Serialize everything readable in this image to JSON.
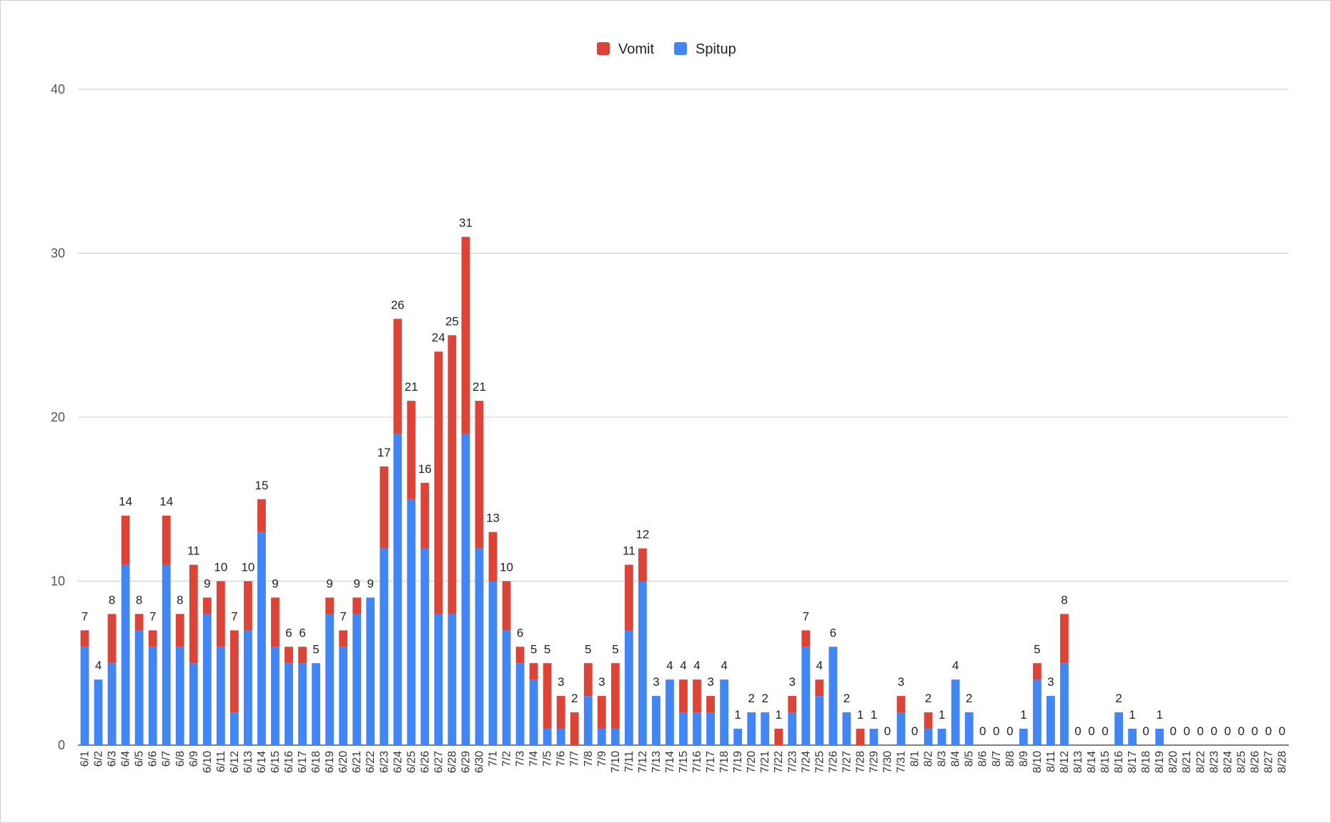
{
  "chart_data": {
    "type": "bar",
    "stacked": true,
    "title": "",
    "xlabel": "",
    "ylabel": "",
    "ylim": [
      0,
      40
    ],
    "yticks": [
      0,
      10,
      20,
      30,
      40
    ],
    "grid": true,
    "legend_position": "top",
    "categories": [
      "6/1",
      "6/2",
      "6/3",
      "6/4",
      "6/5",
      "6/6",
      "6/7",
      "6/8",
      "6/9",
      "6/10",
      "6/11",
      "6/12",
      "6/13",
      "6/14",
      "6/15",
      "6/16",
      "6/17",
      "6/18",
      "6/19",
      "6/20",
      "6/21",
      "6/22",
      "6/23",
      "6/24",
      "6/25",
      "6/26",
      "6/27",
      "6/28",
      "6/29",
      "6/30",
      "7/1",
      "7/2",
      "7/3",
      "7/4",
      "7/5",
      "7/6",
      "7/7",
      "7/8",
      "7/9",
      "7/10",
      "7/11",
      "7/12",
      "7/13",
      "7/14",
      "7/15",
      "7/16",
      "7/17",
      "7/18",
      "7/19",
      "7/20",
      "7/21",
      "7/22",
      "7/23",
      "7/24",
      "7/25",
      "7/26",
      "7/27",
      "7/28",
      "7/29",
      "7/30",
      "7/31",
      "8/1",
      "8/2",
      "8/3",
      "8/4",
      "8/5",
      "8/6",
      "8/7",
      "8/8",
      "8/9",
      "8/10",
      "8/11",
      "8/12",
      "8/13",
      "8/14",
      "8/15",
      "8/16",
      "8/17",
      "8/18",
      "8/19",
      "8/20",
      "8/21",
      "8/22",
      "8/23",
      "8/24",
      "8/25",
      "8/26",
      "8/27",
      "8/28"
    ],
    "series": [
      {
        "name": "Spitup",
        "color": "#4285f4",
        "values": [
          6,
          4,
          5,
          11,
          7,
          6,
          11,
          6,
          5,
          8,
          6,
          2,
          7,
          13,
          6,
          5,
          5,
          5,
          8,
          6,
          8,
          9,
          12,
          19,
          15,
          12,
          8,
          8,
          19,
          12,
          10,
          7,
          5,
          4,
          1,
          1,
          0,
          3,
          1,
          1,
          7,
          10,
          3,
          4,
          2,
          2,
          2,
          4,
          1,
          2,
          2,
          0,
          2,
          6,
          3,
          6,
          2,
          0,
          1,
          0,
          2,
          0,
          1,
          1,
          4,
          2,
          0,
          0,
          0,
          1,
          4,
          3,
          5,
          0,
          0,
          0,
          2,
          1,
          0,
          1,
          0,
          0,
          0,
          0,
          0,
          0,
          0,
          0,
          0
        ]
      },
      {
        "name": "Vomit",
        "color": "#db4437",
        "values": [
          1,
          0,
          3,
          3,
          1,
          1,
          3,
          2,
          6,
          1,
          4,
          5,
          3,
          2,
          3,
          1,
          1,
          0,
          1,
          1,
          1,
          0,
          5,
          7,
          6,
          4,
          16,
          17,
          12,
          9,
          3,
          3,
          1,
          1,
          4,
          2,
          2,
          2,
          2,
          4,
          4,
          2,
          0,
          0,
          2,
          2,
          1,
          0,
          0,
          0,
          0,
          1,
          1,
          1,
          1,
          0,
          0,
          1,
          0,
          0,
          1,
          0,
          1,
          0,
          0,
          0,
          0,
          0,
          0,
          0,
          1,
          0,
          3,
          0,
          0,
          0,
          0,
          0,
          0,
          0,
          0,
          0,
          0,
          0,
          0,
          0,
          0,
          0,
          0
        ]
      }
    ],
    "totals": [
      7,
      4,
      8,
      14,
      8,
      7,
      14,
      8,
      11,
      9,
      10,
      7,
      10,
      15,
      9,
      6,
      6,
      5,
      9,
      7,
      9,
      9,
      17,
      26,
      21,
      16,
      24,
      25,
      31,
      21,
      13,
      10,
      6,
      5,
      5,
      3,
      2,
      5,
      3,
      5,
      11,
      12,
      3,
      4,
      4,
      4,
      3,
      4,
      1,
      2,
      2,
      1,
      3,
      7,
      4,
      6,
      2,
      1,
      1,
      0,
      3,
      0,
      2,
      1,
      4,
      2,
      0,
      0,
      0,
      1,
      5,
      3,
      8,
      0,
      0,
      0,
      2,
      1,
      0,
      1,
      0,
      0,
      0,
      0,
      0,
      0,
      0,
      0,
      0
    ]
  },
  "legend": [
    {
      "label": "Vomit",
      "color": "#db4437"
    },
    {
      "label": "Spitup",
      "color": "#4285f4"
    }
  ]
}
